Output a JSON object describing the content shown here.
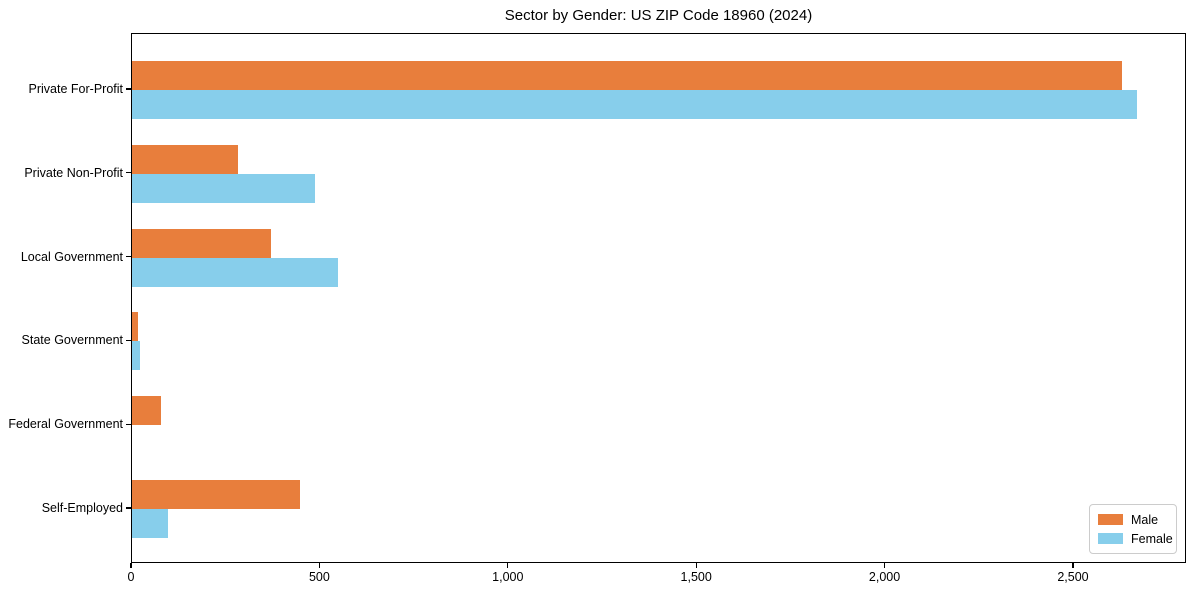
{
  "chart_data": {
    "type": "bar",
    "orientation": "horizontal",
    "title": "Sector by Gender: US ZIP Code 18960 (2024)",
    "xlabel": "",
    "ylabel": "",
    "categories": [
      "Private For-Profit",
      "Private Non-Profit",
      "Local Government",
      "State Government",
      "Federal Government",
      "Self-Employed"
    ],
    "series": [
      {
        "name": "Male",
        "color": "#e87e3c",
        "values": [
          2628,
          282,
          369,
          15,
          77,
          446
        ]
      },
      {
        "name": "Female",
        "color": "#87ceeb",
        "values": [
          2667,
          486,
          547,
          21,
          0,
          95
        ]
      }
    ],
    "xlim": [
      0,
      2800
    ],
    "xticks": [
      0,
      500,
      1000,
      1500,
      2000,
      2500
    ],
    "xtick_labels": [
      "0",
      "500",
      "1,000",
      "1,500",
      "2,000",
      "2,500"
    ],
    "grid": false,
    "legend": {
      "position": "lower right",
      "entries": [
        "Male",
        "Female"
      ]
    },
    "colors": {
      "spine": "#000000",
      "text": "#000000",
      "legend_border": "#cccccc",
      "background": "#ffffff"
    }
  }
}
